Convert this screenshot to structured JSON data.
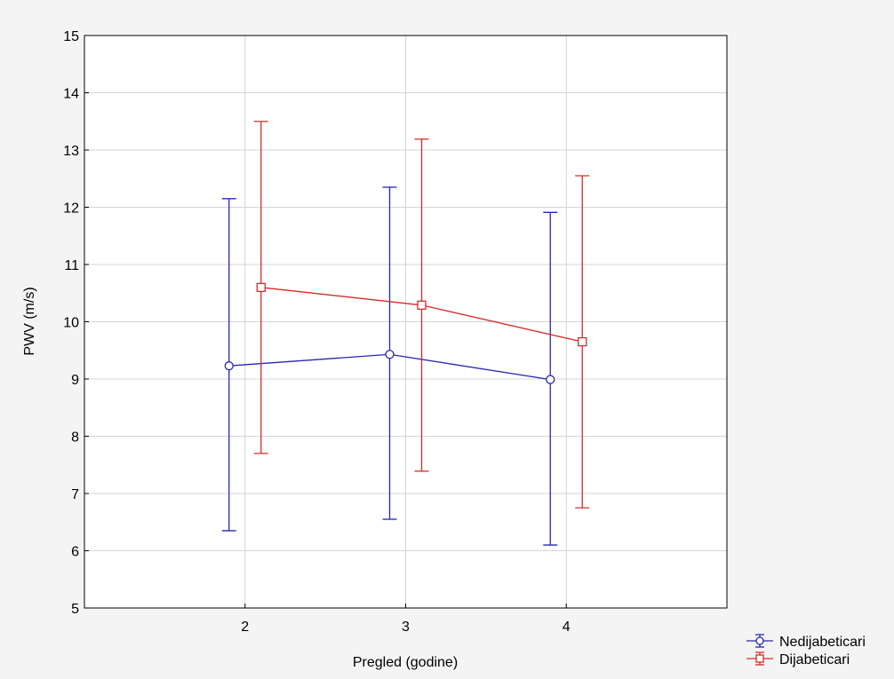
{
  "chart_data": {
    "type": "line",
    "xlabel": "Pregled (godine)",
    "ylabel": "PWV (m/s)",
    "ylim": [
      5,
      15
    ],
    "yticks": [
      5,
      6,
      7,
      8,
      9,
      10,
      11,
      12,
      13,
      14,
      15
    ],
    "categories": [
      "2",
      "3",
      "4"
    ],
    "grid": true,
    "legend_position": "bottom-right",
    "series": [
      {
        "name": "Nedijabeticari",
        "color": "#2626b4",
        "marker": "circle",
        "values": [
          9.23,
          9.43,
          8.99
        ],
        "lower": [
          6.35,
          6.55,
          6.1
        ],
        "upper": [
          12.15,
          12.35,
          11.91
        ]
      },
      {
        "name": "Dijabeticari",
        "color": "#d62a2a",
        "marker": "square",
        "values": [
          10.6,
          10.29,
          9.65
        ],
        "lower": [
          7.7,
          7.39,
          6.75
        ],
        "upper": [
          13.5,
          13.19,
          12.55
        ]
      }
    ]
  }
}
